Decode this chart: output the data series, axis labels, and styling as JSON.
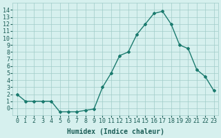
{
  "values": [
    2,
    1,
    1,
    1,
    1,
    -0.5,
    -0.5,
    -0.5,
    -0.3,
    -0.1,
    3,
    5,
    7.5,
    8,
    10.5,
    12,
    13.5,
    13.8,
    12,
    9,
    8.5,
    5.5,
    4.5,
    2.5
  ],
  "line_color": "#1a7a6e",
  "marker_color": "#1a7a6e",
  "bg_color": "#d6f0ee",
  "grid_color": "#a0ccc8",
  "xlabel": "Humidex (Indice chaleur)",
  "ylim": [
    -1,
    15
  ],
  "xlim": [
    -0.5,
    23.5
  ],
  "yticks": [
    0,
    1,
    2,
    3,
    4,
    5,
    6,
    7,
    8,
    9,
    10,
    11,
    12,
    13,
    14
  ],
  "xticks": [
    0,
    1,
    2,
    3,
    4,
    5,
    6,
    7,
    8,
    9,
    10,
    11,
    12,
    13,
    14,
    15,
    16,
    17,
    18,
    19,
    20,
    21,
    22,
    23
  ],
  "xtick_labels": [
    "0",
    "1",
    "2",
    "3",
    "4",
    "5",
    "6",
    "7",
    "8",
    "9",
    "10",
    "11",
    "12",
    "13",
    "14",
    "15",
    "16",
    "17",
    "18",
    "19",
    "20",
    "21",
    "22",
    "23"
  ],
  "font_color": "#1a5c55",
  "label_fontsize": 7,
  "tick_fontsize": 6
}
